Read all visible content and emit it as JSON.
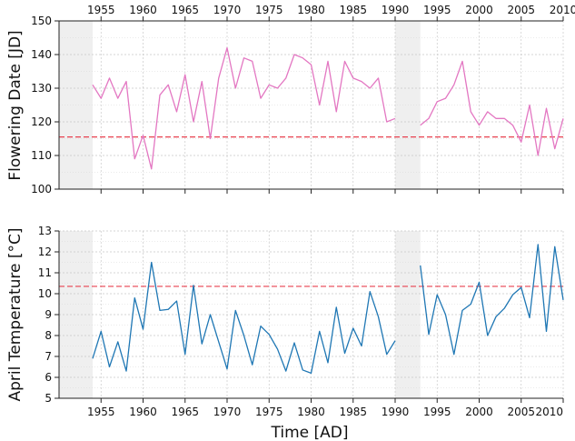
{
  "chart_data": {
    "type": "line",
    "xlabel": "Time [AD]",
    "x_ticks": [
      1955,
      1960,
      1965,
      1970,
      1975,
      1980,
      1985,
      1990,
      1995,
      2000,
      2005,
      2010
    ],
    "x_ticks_top": [
      1955,
      1960,
      1965,
      1970,
      1975,
      1980,
      1985,
      1990,
      1995,
      2000,
      2005,
      2010
    ],
    "xlim": [
      1950,
      2010
    ],
    "gap_regions": [
      [
        1950,
        1954
      ],
      [
        1990,
        1993
      ]
    ],
    "grid": true,
    "panels": [
      {
        "ylabel": "Flowering Date [JD]",
        "ylim": [
          100,
          150
        ],
        "y_ticks": [
          100,
          110,
          120,
          130,
          140,
          150
        ],
        "color": "#e377c2",
        "reference_line": {
          "y": 115.5,
          "color": "#e8414f"
        },
        "x": [
          1954,
          1955,
          1956,
          1957,
          1958,
          1959,
          1960,
          1961,
          1962,
          1963,
          1964,
          1965,
          1966,
          1967,
          1968,
          1969,
          1970,
          1971,
          1972,
          1973,
          1974,
          1975,
          1976,
          1977,
          1978,
          1979,
          1980,
          1981,
          1982,
          1983,
          1984,
          1985,
          1986,
          1987,
          1988,
          1989,
          1990,
          1993,
          1994,
          1995,
          1996,
          1997,
          1998,
          1999,
          2000,
          2001,
          2002,
          2003,
          2004,
          2005,
          2006,
          2007,
          2008,
          2009,
          2010
        ],
        "values": [
          131,
          127,
          133,
          127,
          132,
          109,
          116,
          106,
          128,
          131,
          123,
          134,
          120,
          132,
          115,
          133,
          142,
          130,
          139,
          138,
          127,
          131,
          130,
          133,
          140,
          139,
          137,
          125,
          138,
          123,
          138,
          133,
          132,
          130,
          133,
          120,
          121,
          119,
          121,
          126,
          127,
          131,
          138,
          123,
          119,
          123,
          121,
          121,
          119,
          114,
          125,
          110,
          124,
          112,
          121
        ]
      },
      {
        "ylabel": "April Temperature [°C]",
        "ylim": [
          5,
          13
        ],
        "y_ticks": [
          5,
          6,
          7,
          8,
          9,
          10,
          11,
          12,
          13
        ],
        "color": "#1f77b4",
        "reference_line": {
          "y": 10.35,
          "color": "#e8414f"
        },
        "x": [
          1954,
          1955,
          1956,
          1957,
          1958,
          1959,
          1960,
          1961,
          1962,
          1963,
          1964,
          1965,
          1966,
          1967,
          1968,
          1969,
          1970,
          1971,
          1972,
          1973,
          1974,
          1975,
          1976,
          1977,
          1978,
          1979,
          1980,
          1981,
          1982,
          1983,
          1984,
          1985,
          1986,
          1987,
          1988,
          1989,
          1990,
          1993,
          1994,
          1995,
          1996,
          1997,
          1998,
          1999,
          2000,
          2001,
          2002,
          2003,
          2004,
          2005,
          2006,
          2007,
          2008,
          2009,
          2010
        ],
        "values": [
          6.9,
          8.2,
          6.5,
          7.7,
          6.3,
          9.8,
          8.3,
          11.5,
          9.2,
          9.25,
          9.65,
          7.1,
          10.4,
          7.6,
          9.0,
          7.7,
          6.4,
          9.2,
          8.0,
          6.6,
          8.45,
          8.05,
          7.35,
          6.3,
          7.65,
          6.35,
          6.2,
          8.2,
          6.7,
          9.35,
          7.15,
          8.35,
          7.5,
          10.1,
          8.9,
          7.1,
          7.75,
          11.35,
          8.05,
          9.95,
          9.0,
          7.1,
          9.2,
          9.5,
          10.55,
          8.0,
          8.9,
          9.3,
          9.95,
          10.3,
          8.85,
          12.35,
          8.2,
          12.25,
          9.7
        ]
      }
    ]
  }
}
